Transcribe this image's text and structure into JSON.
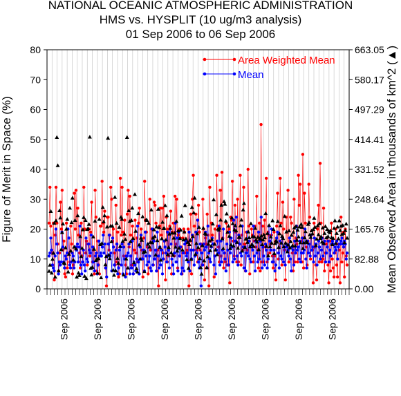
{
  "chart_data": {
    "type": "line",
    "title": [
      "NATIONAL OCEANIC ATMOSPHERIC ADMINISTRATION",
      "HMS vs. HYSPLIT (10 ug/m3 analysis)",
      "01 Sep 2006 to 06 Sep 2006"
    ],
    "ylabel": "Figure of Merit in Space (%)",
    "ylabel_right": "Mean Observed Area in thousands of km^2 (▲)",
    "ylim": [
      0,
      80
    ],
    "yticks": [
      "0",
      "10",
      "20",
      "30",
      "40",
      "50",
      "60",
      "70",
      "80"
    ],
    "ylim_right": [
      0,
      663.05
    ],
    "yticks_right": [
      "0.00",
      "82.88",
      "165.76",
      "248.64",
      "331.52",
      "414.41",
      "497.29",
      "580.17",
      "663.05"
    ],
    "x_tick_labels": [
      "Sep 2006",
      "Sep 2006",
      "Sep 2006",
      "Sep 2006",
      "Sep 2006",
      "Sep 2006",
      "Sep 2006",
      "Sep 2006",
      "Sep 2006"
    ],
    "legend": {
      "placement": "top-right"
    },
    "colors": {
      "area_weighted_mean": "#ff0000",
      "mean": "#0000ff",
      "observed_area": "#000000"
    },
    "series": [
      {
        "name": "Area Weighted Mean",
        "marker": "circle",
        "values": [
          22,
          34,
          21,
          12,
          8,
          22,
          3,
          18,
          34,
          22,
          15,
          6,
          12,
          29,
          20,
          33,
          13,
          16,
          5,
          4,
          22,
          7,
          12,
          17,
          9,
          21,
          15,
          5,
          8,
          32,
          20,
          33,
          14,
          27,
          18,
          12,
          7,
          22,
          11,
          9,
          34,
          20,
          12,
          16,
          8,
          15,
          20,
          11,
          19,
          29,
          9,
          13,
          5,
          33,
          24,
          6,
          16,
          8,
          5,
          21,
          21,
          36,
          22,
          19,
          26,
          7,
          1,
          24,
          24,
          13,
          18,
          34,
          30,
          16,
          20,
          12,
          8,
          28,
          9,
          19,
          4,
          5,
          37,
          18,
          34,
          19,
          11,
          23,
          8,
          5,
          25,
          33,
          14,
          31,
          18,
          8,
          21,
          5,
          13,
          23,
          12,
          17,
          9,
          22,
          27,
          10,
          20,
          13,
          4,
          17,
          36,
          23,
          19,
          14,
          5,
          7,
          30,
          13,
          20,
          17,
          8,
          29,
          28,
          22,
          6,
          13,
          1,
          21,
          27,
          18,
          27,
          12,
          31,
          16,
          3,
          24,
          9,
          20,
          11,
          21,
          26,
          5,
          19,
          22,
          11,
          31,
          15,
          30,
          7,
          18,
          20,
          17,
          14,
          5,
          17,
          20,
          19,
          12,
          16,
          13,
          20,
          1,
          16,
          25,
          5,
          30,
          38,
          21,
          11,
          25,
          13,
          9,
          28,
          19,
          13,
          15,
          8,
          30,
          20,
          3,
          17,
          15,
          25,
          18,
          1,
          34,
          16,
          22,
          18,
          15,
          4,
          20,
          13,
          38,
          21,
          14,
          9,
          33,
          11,
          39,
          17,
          7,
          12,
          9,
          22,
          8,
          19,
          20,
          2,
          24,
          23,
          36,
          16,
          11,
          28,
          19,
          9,
          30,
          9,
          17,
          38,
          8,
          18,
          13,
          34,
          15,
          6,
          19,
          13,
          40,
          21,
          5,
          14,
          20,
          18,
          9,
          16,
          21,
          14,
          31,
          13,
          7,
          22,
          6,
          55,
          9,
          21,
          9,
          23,
          14,
          37,
          9,
          19,
          18,
          12,
          15,
          18,
          11,
          7,
          19,
          11,
          3,
          21,
          32,
          10,
          14,
          37,
          22,
          8,
          29,
          20,
          13,
          3,
          24,
          14,
          33,
          9,
          16,
          24,
          22,
          12,
          6,
          30,
          9,
          17,
          15,
          9,
          38,
          28,
          35,
          16,
          9,
          45,
          7,
          32,
          22,
          14,
          8,
          16,
          35,
          24,
          10,
          18,
          13,
          2,
          22,
          14,
          8,
          3,
          20,
          28,
          9,
          42,
          22,
          9,
          10,
          27,
          6,
          12,
          15,
          17,
          8,
          2,
          16,
          6,
          22,
          10,
          7,
          4,
          12,
          20,
          8,
          4,
          15,
          13,
          2,
          24,
          9,
          12,
          19,
          4,
          20,
          11,
          8
        ]
      },
      {
        "name": "Mean",
        "marker": "circle",
        "values": [
          11,
          12,
          17,
          13,
          8,
          7,
          6,
          11,
          20,
          15,
          12,
          5,
          9,
          8,
          9,
          19,
          14,
          9,
          7,
          11,
          10,
          12,
          20,
          17,
          8,
          7,
          9,
          12,
          11,
          7,
          9,
          14,
          13,
          15,
          9,
          14,
          21,
          8,
          5,
          9,
          13,
          8,
          6,
          17,
          10,
          9,
          15,
          13,
          12,
          18,
          7,
          14,
          9,
          6,
          11,
          12,
          5,
          8,
          16,
          11,
          12,
          11,
          14,
          18,
          12,
          15,
          7,
          4,
          11,
          15,
          18,
          11,
          12,
          6,
          17,
          14,
          8,
          6,
          13,
          15,
          5,
          7,
          13,
          14,
          8,
          15,
          5,
          14,
          10,
          4,
          11,
          11,
          12,
          15,
          5,
          11,
          7,
          16,
          5,
          9,
          8,
          6,
          10,
          21,
          9,
          5,
          14,
          18,
          10,
          10,
          13,
          6,
          19,
          11,
          8,
          15,
          9,
          11,
          7,
          6,
          20,
          8,
          16,
          10,
          13,
          6,
          19,
          11,
          7,
          14,
          8,
          13,
          5,
          10,
          16,
          14,
          12,
          9,
          19,
          13,
          7,
          20,
          15,
          10,
          8,
          5,
          12,
          22,
          9,
          17,
          6,
          19,
          11,
          14,
          5,
          7,
          12,
          6,
          15,
          16,
          11,
          12,
          9,
          19,
          6,
          13,
          10,
          18,
          13,
          8,
          11,
          19,
          12,
          23,
          9,
          7,
          15,
          1,
          12,
          8,
          15,
          13,
          19,
          14,
          7,
          21,
          12,
          10,
          9,
          14,
          17,
          15,
          8,
          11,
          5,
          13,
          16,
          12,
          21,
          8,
          16,
          9,
          13,
          20,
          12,
          10,
          6,
          15,
          13,
          8,
          19,
          12,
          17,
          14,
          9,
          23,
          10,
          16,
          24,
          11,
          8,
          18,
          15,
          12,
          11,
          21,
          14,
          7,
          14,
          6,
          12,
          19,
          11,
          16,
          10,
          9,
          14,
          13,
          21,
          11,
          6,
          16,
          12,
          9,
          19,
          10,
          16,
          24,
          7,
          14,
          11,
          8,
          15,
          13,
          7,
          10,
          21,
          16,
          13,
          20,
          9,
          9,
          13,
          6,
          8,
          17,
          19,
          12,
          7,
          16,
          11,
          10,
          17,
          9,
          14,
          8,
          15,
          14,
          13,
          11,
          17,
          10,
          6,
          14,
          13,
          8,
          16,
          12,
          21,
          13,
          14,
          10,
          16,
          9,
          12,
          17,
          12,
          13,
          20,
          10,
          7,
          16,
          12,
          15,
          11,
          18,
          13,
          14,
          9,
          17,
          11,
          15,
          8,
          12,
          16,
          14,
          10,
          13,
          17,
          11,
          15,
          16,
          9,
          12,
          14,
          16,
          9,
          13,
          11,
          15,
          16,
          15,
          12,
          14,
          13,
          16,
          10,
          14,
          15,
          15,
          16,
          17,
          15,
          14,
          16,
          15,
          10,
          12
        ]
      },
      {
        "name": "Observed Area",
        "marker": "triangle",
        "axis": "right",
        "values": [
          49,
          66,
          215,
          44,
          82,
          99,
          182,
          33,
          189,
          420,
          342,
          50,
          217,
          197,
          109,
          156,
          180,
          72,
          70,
          114,
          166,
          193,
          47,
          96,
          224,
          105,
          184,
          252,
          80,
          116,
          190,
          111,
          33,
          203,
          44,
          37,
          145,
          90,
          113,
          164,
          198,
          35,
          190,
          29,
          165,
          167,
          179,
          421,
          57,
          39,
          60,
          144,
          110,
          188,
          79,
          82,
          44,
          84,
          193,
          123,
          31,
          126,
          226,
          186,
          203,
          67,
          90,
          172,
          418,
          94,
          84,
          174,
          131,
          174,
          52,
          38,
          254,
          50,
          182,
          85,
          71,
          171,
          118,
          199,
          193,
          132,
          39,
          152,
          137,
          83,
          420,
          58,
          217,
          187,
          131,
          190,
          224,
          140,
          73,
          262,
          160,
          56,
          47,
          209,
          122,
          83,
          141,
          135,
          200,
          101,
          48,
          103,
          191,
          190,
          124,
          182,
          116,
          129,
          219,
          128,
          141,
          164,
          145,
          94,
          172,
          134,
          221,
          170,
          115,
          80,
          139,
          185,
          167,
          168,
          231,
          136,
          203,
          95,
          115,
          152,
          168,
          100,
          155,
          93,
          141,
          155,
          116,
          187,
          105,
          161,
          113,
          140,
          163,
          202,
          108,
          136,
          158,
          231,
          139,
          81,
          129,
          57,
          123,
          135,
          82,
          226,
          145,
          211,
          252,
          96,
          126,
          153,
          115,
          171,
          84,
          59,
          41,
          120,
          168,
          78,
          154,
          151,
          59,
          89,
          124,
          133,
          106,
          119,
          137,
          180,
          247,
          124,
          108,
          206,
          95,
          166,
          163,
          168,
          191,
          232,
          139,
          112,
          242,
          235,
          188,
          208,
          157,
          174,
          146,
          112,
          122,
          197,
          181,
          119,
          164,
          175,
          161,
          129,
          113,
          143,
          143,
          175,
          191,
          105,
          219,
          237,
          115,
          138,
          138,
          129,
          158,
          142,
          117,
          181,
          123,
          145,
          118,
          144,
          168,
          136,
          130,
          143,
          109,
          138,
          139,
          147,
          123,
          136,
          150,
          142,
          209,
          118,
          154,
          92,
          176,
          117,
          144,
          127,
          189,
          165,
          98,
          126,
          134,
          130,
          187,
          115,
          153,
          175,
          127,
          146,
          140,
          117,
          201,
          127,
          158,
          103,
          122,
          161,
          114,
          131,
          149,
          120,
          157,
          169,
          119,
          173,
          135,
          163,
          144,
          172,
          128,
          179,
          171,
          112,
          128,
          142,
          159,
          132,
          128,
          179,
          184,
          150,
          143,
          161,
          153,
          165,
          196,
          171,
          120,
          138,
          175,
          150,
          181,
          140,
          145,
          130,
          169,
          126,
          154,
          173,
          142,
          165,
          145,
          160,
          156,
          161,
          142,
          123,
          140,
          168,
          189,
          126,
          154,
          172,
          139,
          189,
          162,
          174,
          151,
          176,
          154,
          128,
          162,
          180,
          141
        ]
      }
    ]
  }
}
